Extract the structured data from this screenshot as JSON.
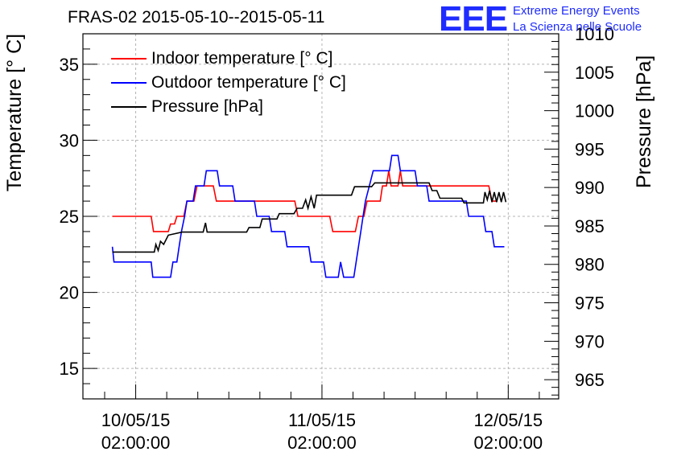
{
  "chart_data": {
    "type": "line",
    "title": "FRAS-02 2015-05-10--2015-05-11",
    "logo": {
      "mark": "EEE",
      "line1": "Extreme Energy Events",
      "line2": "La Scienza nelle Scuole"
    },
    "ylabel_left": "Temperature [° C]",
    "ylabel_right": "Pressure [hPa]",
    "legend": [
      {
        "name": "Indoor temperature [° C]",
        "color": "#ff0000"
      },
      {
        "name": "Outdoor temperature [° C]",
        "color": "#0000ff"
      },
      {
        "name": "Pressure [hPa]",
        "color": "#000000"
      }
    ],
    "x_unit": "hours since 10/05/15 00:00:00",
    "xlim": [
      -6.8,
      54.5
    ],
    "x_ticks": [
      {
        "x": 0,
        "date": "10/05/15",
        "time": "02:00:00"
      },
      {
        "x": 24,
        "date": "11/05/15",
        "time": "02:00:00"
      },
      {
        "x": 48,
        "date": "12/05/15",
        "time": "02:00:00"
      }
    ],
    "y_left_lim": [
      13,
      37
    ],
    "y_left_ticks": [
      15,
      20,
      25,
      30,
      35
    ],
    "y_right_lim": [
      962.5,
      1010
    ],
    "y_right_ticks": [
      965,
      970,
      975,
      980,
      985,
      990,
      995,
      1000,
      1005,
      1010
    ],
    "grid": true,
    "series": [
      {
        "name": "Indoor temperature [° C]",
        "axis": "left",
        "color": "#ff0000",
        "points": [
          [
            -3,
            25
          ],
          [
            2,
            25
          ],
          [
            2.3,
            24
          ],
          [
            4.2,
            24
          ],
          [
            4.5,
            24.5
          ],
          [
            5,
            24.5
          ],
          [
            5.3,
            25
          ],
          [
            6.2,
            25
          ],
          [
            6.6,
            26
          ],
          [
            7.5,
            26
          ],
          [
            7.9,
            27
          ],
          [
            10,
            27
          ],
          [
            10.4,
            26
          ],
          [
            20.5,
            26
          ],
          [
            20.9,
            25
          ],
          [
            24,
            25
          ],
          [
            25,
            25
          ],
          [
            25.4,
            24
          ],
          [
            28.3,
            24
          ],
          [
            28.7,
            25
          ],
          [
            29.4,
            25
          ],
          [
            29.8,
            26
          ],
          [
            31.5,
            26
          ],
          [
            31.8,
            27
          ],
          [
            32.3,
            27
          ],
          [
            32.6,
            28
          ],
          [
            32.9,
            27
          ],
          [
            33.8,
            27
          ],
          [
            34.1,
            28
          ],
          [
            34.4,
            27
          ],
          [
            45.5,
            27
          ],
          [
            45.9,
            26
          ],
          [
            46.5,
            26
          ]
        ]
      },
      {
        "name": "Outdoor temperature [° C]",
        "axis": "left",
        "color": "#0000ff",
        "points": [
          [
            -3,
            23
          ],
          [
            -2.8,
            22
          ],
          [
            0.7,
            22
          ],
          [
            1.1,
            22
          ],
          [
            2,
            22
          ],
          [
            2.2,
            21
          ],
          [
            4.5,
            21
          ],
          [
            4.8,
            22
          ],
          [
            5.3,
            22
          ],
          [
            5.6,
            23
          ],
          [
            5.9,
            24
          ],
          [
            6.3,
            25
          ],
          [
            6.6,
            26
          ],
          [
            7.4,
            26
          ],
          [
            7.7,
            27
          ],
          [
            8.8,
            27
          ],
          [
            9.1,
            28
          ],
          [
            10.5,
            28
          ],
          [
            10.8,
            27
          ],
          [
            12.5,
            27
          ],
          [
            12.8,
            26
          ],
          [
            15.3,
            26
          ],
          [
            15.6,
            25
          ],
          [
            17.2,
            25
          ],
          [
            17.5,
            24
          ],
          [
            19.2,
            24
          ],
          [
            19.5,
            23
          ],
          [
            22.3,
            23
          ],
          [
            22.6,
            22
          ],
          [
            24.2,
            22
          ],
          [
            24.5,
            21
          ],
          [
            26.1,
            21
          ],
          [
            26.4,
            22
          ],
          [
            26.8,
            21
          ],
          [
            28.1,
            21
          ],
          [
            28.4,
            22
          ],
          [
            28.7,
            23
          ],
          [
            29,
            24
          ],
          [
            29.3,
            25
          ],
          [
            29.6,
            26
          ],
          [
            30.1,
            27
          ],
          [
            30.6,
            28
          ],
          [
            32.7,
            28
          ],
          [
            33,
            29
          ],
          [
            33.8,
            29
          ],
          [
            34.1,
            28
          ],
          [
            36,
            28
          ],
          [
            36.3,
            27
          ],
          [
            37.5,
            27
          ],
          [
            37.8,
            26
          ],
          [
            42.6,
            26
          ],
          [
            42.9,
            25
          ],
          [
            44.8,
            25
          ],
          [
            45.1,
            24
          ],
          [
            45.9,
            24
          ],
          [
            46.2,
            23
          ],
          [
            47.5,
            23
          ]
        ]
      },
      {
        "name": "Pressure [hPa]",
        "axis": "right",
        "color": "#000000",
        "points": [
          [
            -3,
            981.6
          ],
          [
            2.4,
            981.6
          ],
          [
            2.6,
            982.6
          ],
          [
            2.9,
            981.8
          ],
          [
            3.2,
            983
          ],
          [
            3.6,
            982.6
          ],
          [
            4.2,
            983.8
          ],
          [
            6,
            984.2
          ],
          [
            8.7,
            984.2
          ],
          [
            9,
            985.4
          ],
          [
            9.2,
            984.2
          ],
          [
            11.5,
            984.2
          ],
          [
            14.3,
            984.2
          ],
          [
            14.6,
            984.8
          ],
          [
            16,
            984.8
          ],
          [
            16.3,
            985.9
          ],
          [
            18.2,
            985.9
          ],
          [
            18.5,
            986.6
          ],
          [
            20.4,
            986.6
          ],
          [
            20.8,
            987.3
          ],
          [
            21.5,
            987.3
          ],
          [
            21.9,
            988.4
          ],
          [
            22.2,
            987.3
          ],
          [
            22.6,
            988.8
          ],
          [
            23,
            987.3
          ],
          [
            23.3,
            989
          ],
          [
            24.3,
            989
          ],
          [
            25,
            989
          ],
          [
            27.8,
            989
          ],
          [
            28.2,
            990.1
          ],
          [
            30.4,
            990.1
          ],
          [
            30.8,
            990.6
          ],
          [
            37.8,
            990.6
          ],
          [
            38.2,
            989.6
          ],
          [
            38.8,
            989.6
          ],
          [
            39.2,
            988.6
          ],
          [
            42,
            988.6
          ],
          [
            42.3,
            988
          ],
          [
            44.8,
            988
          ],
          [
            45,
            989.4
          ],
          [
            45.3,
            988.4
          ],
          [
            45.6,
            989.6
          ],
          [
            45.9,
            988.1
          ],
          [
            46.2,
            989.4
          ],
          [
            46.5,
            988.1
          ],
          [
            46.8,
            989.4
          ],
          [
            47.1,
            988.1
          ],
          [
            47.4,
            989.4
          ],
          [
            47.7,
            988.1
          ]
        ]
      }
    ]
  }
}
